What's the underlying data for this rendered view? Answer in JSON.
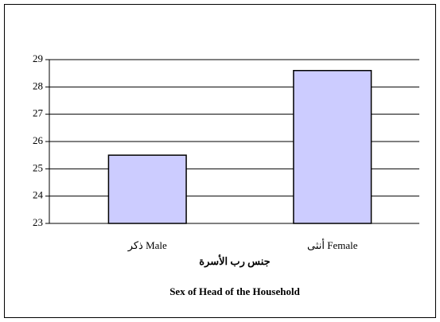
{
  "chart_data": {
    "type": "bar",
    "categories": [
      "ذكر Male",
      "أنثى Female"
    ],
    "values": [
      25.5,
      28.6
    ],
    "color": "#ccccff",
    "ylim": [
      23,
      29
    ],
    "yticks": [
      23,
      24,
      25,
      26,
      27,
      28,
      29
    ],
    "grid": true,
    "xlabel": [
      "جنس رب الأسرة",
      "Sex of Head of the Household"
    ]
  }
}
